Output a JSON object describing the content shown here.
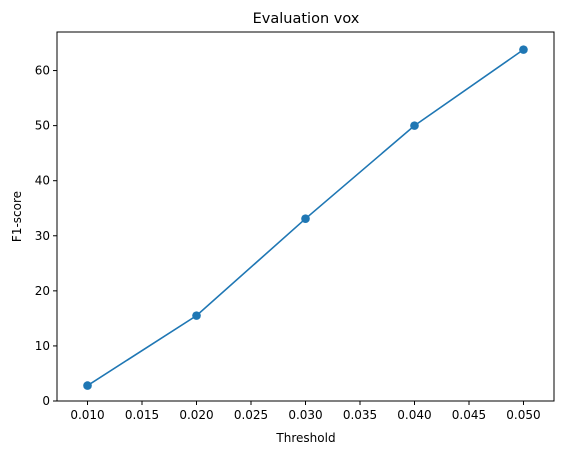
{
  "chart_data": {
    "type": "line",
    "title": "Evaluation vox",
    "xlabel": "Threshold",
    "ylabel": "F1-score",
    "x": [
      0.01,
      0.02,
      0.03,
      0.04,
      0.05
    ],
    "series": [
      {
        "values": [
          2.8,
          15.5,
          33.1,
          50.0,
          63.8
        ],
        "color": "#1f77b4",
        "marker": "circle"
      }
    ],
    "xlim": [
      0.0072,
      0.0528
    ],
    "ylim": [
      0,
      67
    ],
    "x_ticks": [
      "0.010",
      "0.015",
      "0.020",
      "0.025",
      "0.030",
      "0.035",
      "0.040",
      "0.045",
      "0.050"
    ],
    "y_ticks": [
      "0",
      "10",
      "20",
      "30",
      "40",
      "50",
      "60"
    ],
    "grid": false,
    "legend": "none"
  }
}
